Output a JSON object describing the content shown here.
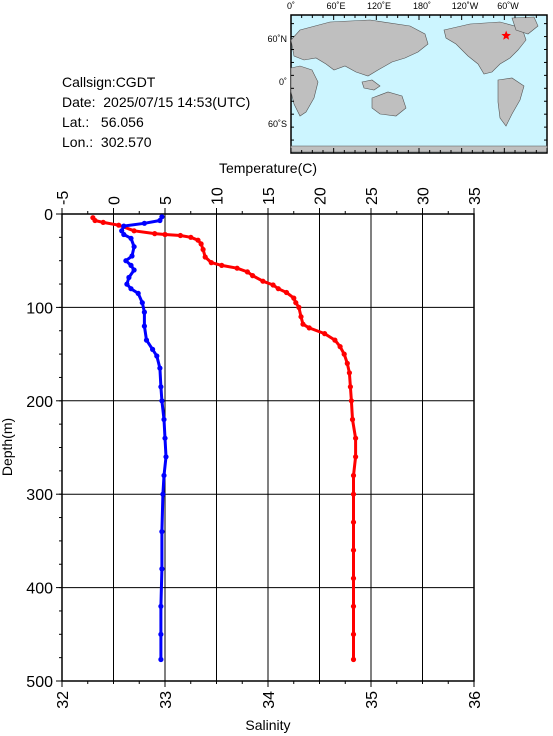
{
  "info": {
    "callsign": "Callsign:CGDT",
    "date": "Date:  2025/07/15 14:53(UTC)",
    "lat": "Lat.:   56.056",
    "lon": "Lon.:  302.570"
  },
  "map": {
    "lon_labels": [
      "0˚",
      "60˚E",
      "120˚E",
      "180˚",
      "120˚W",
      "60˚W"
    ],
    "lat_labels": [
      "60˚N",
      "0˚",
      "60˚S"
    ],
    "ocean_color": "#ccf5ff",
    "land_color": "#bfbfbf",
    "marker": {
      "lon": 302.57,
      "lat": 56.056,
      "color": "#ff0000",
      "symbol": "star"
    }
  },
  "chart_data": {
    "type": "line",
    "y": {
      "label": "Depth(m)",
      "lim": [
        500,
        0
      ],
      "ticks": [
        0,
        100,
        200,
        300,
        400,
        500
      ],
      "grid": true
    },
    "x_top": {
      "label": "Temperature(C)",
      "lim": [
        -5,
        35
      ],
      "ticks": [
        -5,
        0,
        5,
        10,
        15,
        20,
        25,
        30,
        35
      ]
    },
    "x_bottom": {
      "label": "Salinity",
      "lim": [
        32,
        36
      ],
      "ticks": [
        32,
        33,
        34,
        35,
        36
      ]
    },
    "series": [
      {
        "axis": "top",
        "color": "#ff0000",
        "points": [
          [
            -2.0,
            4
          ],
          [
            -1.8,
            7
          ],
          [
            -1.0,
            9
          ],
          [
            0.5,
            12
          ],
          [
            2,
            18
          ],
          [
            4,
            21
          ],
          [
            5,
            22
          ],
          [
            6.5,
            23
          ],
          [
            7.5,
            25
          ],
          [
            8.2,
            28
          ],
          [
            8.5,
            32
          ],
          [
            8.7,
            38
          ],
          [
            8.9,
            46
          ],
          [
            9.5,
            52
          ],
          [
            10.5,
            55
          ],
          [
            12,
            58
          ],
          [
            13,
            62
          ],
          [
            13.5,
            66
          ],
          [
            14.5,
            72
          ],
          [
            15.5,
            76
          ],
          [
            16,
            80
          ],
          [
            16.8,
            84
          ],
          [
            17.5,
            90
          ],
          [
            17.7,
            95
          ],
          [
            18,
            100
          ],
          [
            18.2,
            110
          ],
          [
            18.4,
            118
          ],
          [
            19,
            122
          ],
          [
            20.5,
            128
          ],
          [
            21.5,
            135
          ],
          [
            22,
            142
          ],
          [
            22.4,
            150
          ],
          [
            22.7,
            160
          ],
          [
            22.9,
            170
          ],
          [
            23.0,
            185
          ],
          [
            23.1,
            200
          ],
          [
            23.2,
            220
          ],
          [
            23.5,
            240
          ],
          [
            23.5,
            260
          ],
          [
            23.3,
            280
          ],
          [
            23.3,
            300
          ],
          [
            23.3,
            330
          ],
          [
            23.3,
            360
          ],
          [
            23.3,
            390
          ],
          [
            23.3,
            420
          ],
          [
            23.3,
            450
          ],
          [
            23.3,
            477
          ]
        ]
      },
      {
        "axis": "bottom",
        "color": "#0000ff",
        "points": [
          [
            32.97,
            3
          ],
          [
            32.95,
            7
          ],
          [
            32.8,
            10
          ],
          [
            32.6,
            13
          ],
          [
            32.58,
            18
          ],
          [
            32.6,
            22
          ],
          [
            32.67,
            26
          ],
          [
            32.7,
            35
          ],
          [
            32.68,
            45
          ],
          [
            32.62,
            50
          ],
          [
            32.67,
            55
          ],
          [
            32.7,
            60
          ],
          [
            32.65,
            68
          ],
          [
            32.63,
            75
          ],
          [
            32.67,
            80
          ],
          [
            32.74,
            85
          ],
          [
            32.78,
            95
          ],
          [
            32.8,
            105
          ],
          [
            32.8,
            120
          ],
          [
            32.82,
            135
          ],
          [
            32.88,
            145
          ],
          [
            32.92,
            152
          ],
          [
            32.95,
            165
          ],
          [
            32.96,
            185
          ],
          [
            32.97,
            200
          ],
          [
            32.99,
            220
          ],
          [
            33.0,
            240
          ],
          [
            33.01,
            260
          ],
          [
            32.99,
            280
          ],
          [
            32.98,
            300
          ],
          [
            32.97,
            340
          ],
          [
            32.97,
            380
          ],
          [
            32.96,
            420
          ],
          [
            32.96,
            450
          ],
          [
            32.96,
            477
          ]
        ]
      }
    ]
  }
}
